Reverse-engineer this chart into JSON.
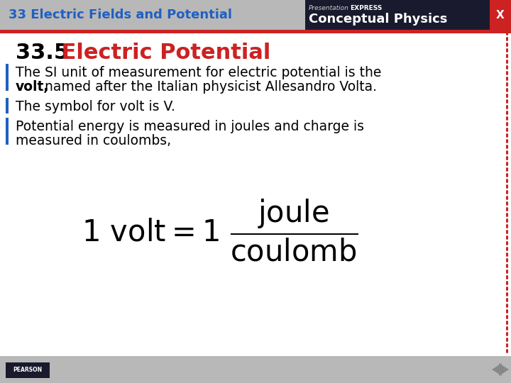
{
  "bg_color": "#ffffff",
  "header_bg": "#b8b8b8",
  "header_text": "33 Electric Fields and Potential",
  "header_text_color": "#2060c0",
  "header_font_size": 13,
  "top_bar_color": "#cc2222",
  "right_header_bg": "#1a1a2e",
  "right_header_top_italic": "Presentation",
  "right_header_top_bold": "EXPRESS",
  "right_header_bot": "Conceptual Physics",
  "title_number": "33.5",
  "title_text": " Electric Potential",
  "title_number_color": "#000000",
  "title_text_color": "#cc2222",
  "title_font_size": 22,
  "bullet_color": "#2060c0",
  "body_color": "#000000",
  "body_font_size": 13.5,
  "border_dot_color": "#cc2222",
  "footer_bg": "#b8b8b8",
  "pearson_bg": "#1a1a2e",
  "nav_arrow_color": "#888888"
}
